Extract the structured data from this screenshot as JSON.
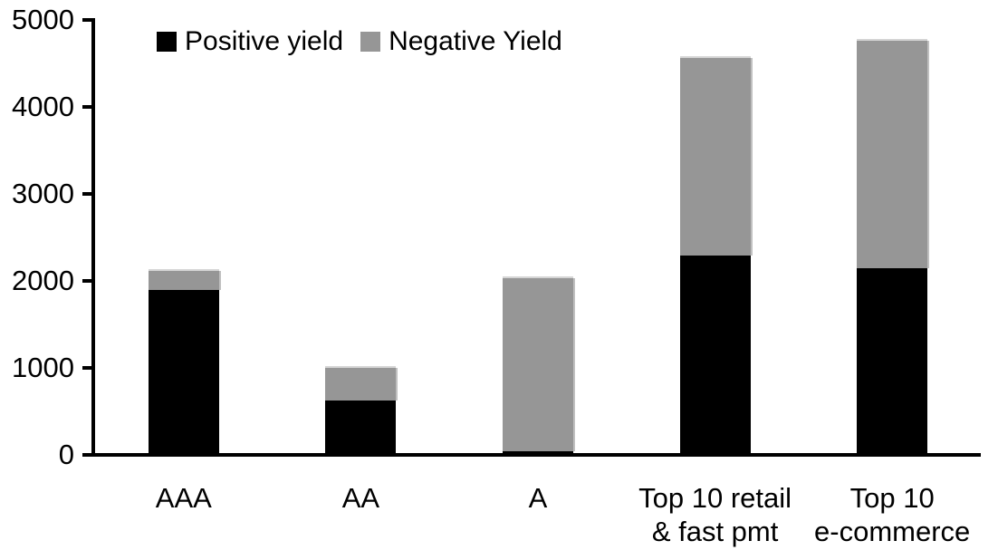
{
  "chart_data": {
    "type": "bar",
    "stacked": true,
    "title": "",
    "xlabel": "",
    "ylabel": "",
    "categories": [
      "AAA",
      "AA",
      "A",
      "Top 10 retail\n& fast pmt",
      "Top 10\ne-commerce"
    ],
    "series": [
      {
        "name": "Positive yield",
        "color": "#000000",
        "values": [
          1900,
          620,
          40,
          2290,
          2150
        ]
      },
      {
        "name": "Negative Yield",
        "color": "#969696",
        "values": [
          220,
          380,
          1990,
          2270,
          2610
        ]
      }
    ],
    "totals": [
      2120,
      1000,
      2030,
      4560,
      4760
    ],
    "ylim": [
      0,
      5000
    ],
    "yticks": [
      0,
      1000,
      2000,
      3000,
      4000,
      5000
    ],
    "grid": false,
    "legend_position": "top",
    "background_color": "#ffffff",
    "text_color": "#000000"
  }
}
